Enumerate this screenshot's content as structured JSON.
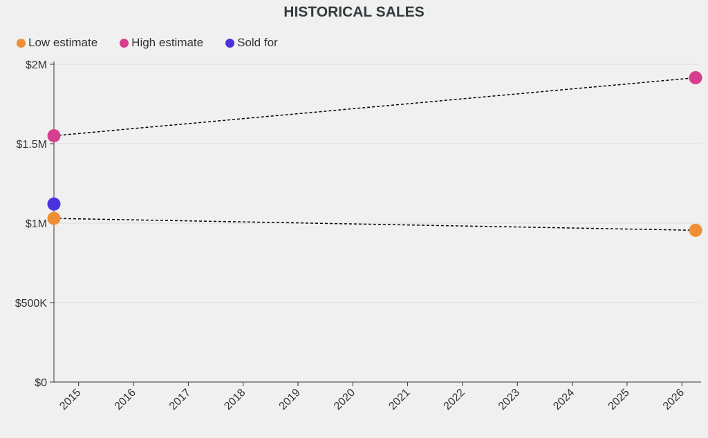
{
  "chart_data": {
    "type": "scatter",
    "title": "HISTORICAL SALES",
    "xlabel": "",
    "ylabel": "",
    "x_ticks": [
      "2015",
      "2016",
      "2017",
      "2018",
      "2019",
      "2020",
      "2021",
      "2022",
      "2023",
      "2024",
      "2025",
      "2026"
    ],
    "y_ticks": [
      {
        "value": 0,
        "label": "$0"
      },
      {
        "value": 500000,
        "label": "$500K"
      },
      {
        "value": 1000000,
        "label": "$1M"
      },
      {
        "value": 1500000,
        "label": "$1.5M"
      },
      {
        "value": 2000000,
        "label": "$2M"
      }
    ],
    "xlim": [
      2014.55,
      2026.35
    ],
    "ylim": [
      0,
      2000000
    ],
    "grid": true,
    "series": [
      {
        "name": "Low estimate",
        "color": "#ee8f35",
        "points": [
          {
            "x": 2014.55,
            "y": 1030000
          },
          {
            "x": 2026.25,
            "y": 955000
          }
        ],
        "trendline": true
      },
      {
        "name": "High estimate",
        "color": "#d83e8f",
        "points": [
          {
            "x": 2014.55,
            "y": 1550000
          },
          {
            "x": 2026.25,
            "y": 1915000
          }
        ],
        "trendline": true
      },
      {
        "name": "Sold for",
        "color": "#4b32df",
        "points": [
          {
            "x": 2014.55,
            "y": 1120000
          }
        ],
        "trendline": false
      }
    ]
  }
}
